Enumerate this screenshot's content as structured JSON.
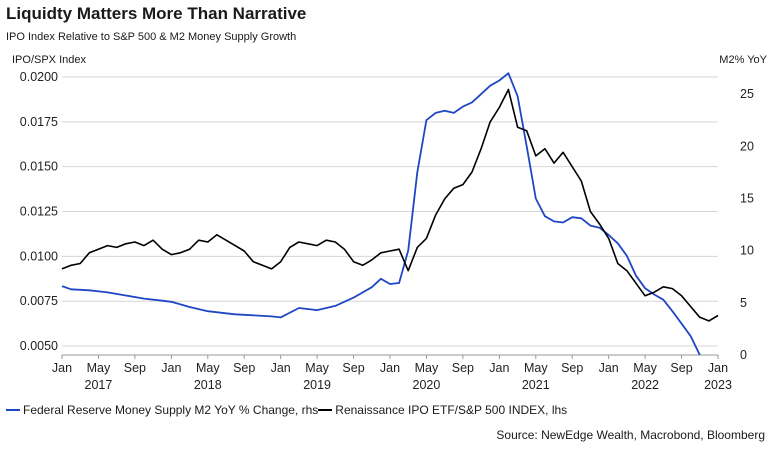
{
  "chart_data": {
    "type": "line",
    "title": "Liquidty Matters More Than Narrative",
    "subtitle": "IPO Index Relative to S&P 500 & M2 Money Supply Growth",
    "ylabel_left": "IPO/SPX Index",
    "ylabel_right": "M2% YoY",
    "source": "Source: NewEdge Wealth, Macrobond, Bloomberg",
    "legend_position": "bottom",
    "grid": true,
    "y_left": {
      "min": 0.0045,
      "max": 0.0205,
      "ticks": [
        0.005,
        0.0075,
        0.01,
        0.0125,
        0.015,
        0.0175,
        0.02
      ],
      "tick_labels": [
        "0.0050",
        "0.0075",
        "0.0100",
        "0.0125",
        "0.0150",
        "0.0175",
        "0.0200"
      ]
    },
    "y_right": {
      "min": 0,
      "max": 27.5,
      "ticks": [
        0,
        5,
        10,
        15,
        20,
        25
      ],
      "tick_labels": [
        "0",
        "5",
        "10",
        "15",
        "20",
        "25"
      ]
    },
    "x_axis": {
      "start": "2017-01",
      "end": "2023-01",
      "month_ticks": [
        "Jan",
        "May",
        "Sep",
        "Jan",
        "May",
        "Sep",
        "Jan",
        "May",
        "Sep",
        "Jan",
        "May",
        "Sep",
        "Jan",
        "May",
        "Sep",
        "Jan",
        "May",
        "Sep",
        "Jan"
      ],
      "tick_dates": [
        "2017-01",
        "2017-05",
        "2017-09",
        "2018-01",
        "2018-05",
        "2018-09",
        "2019-01",
        "2019-05",
        "2019-09",
        "2020-01",
        "2020-05",
        "2020-09",
        "2021-01",
        "2021-05",
        "2021-09",
        "2022-01",
        "2022-05",
        "2022-09",
        "2023-01"
      ],
      "year_labels": [
        {
          "label": "2017",
          "date": "2017-05"
        },
        {
          "label": "2018",
          "date": "2018-05"
        },
        {
          "label": "2019",
          "date": "2019-05"
        },
        {
          "label": "2020",
          "date": "2020-05"
        },
        {
          "label": "2021",
          "date": "2021-05"
        },
        {
          "label": "2022",
          "date": "2022-05"
        },
        {
          "label": "2023",
          "date": "2023-01"
        }
      ]
    },
    "series": [
      {
        "name": "Federal Reserve Money Supply M2 YoY % Change, rhs",
        "axis": "right",
        "color": "#1f47c4",
        "points": [
          [
            "2017-01",
            6.6
          ],
          [
            "2017-02",
            6.3
          ],
          [
            "2017-04",
            6.2
          ],
          [
            "2017-06",
            6.0
          ],
          [
            "2017-08",
            5.7
          ],
          [
            "2017-10",
            5.4
          ],
          [
            "2017-12",
            5.2
          ],
          [
            "2018-01",
            5.1
          ],
          [
            "2018-03",
            4.6
          ],
          [
            "2018-05",
            4.2
          ],
          [
            "2018-07",
            4.0
          ],
          [
            "2018-08",
            3.9
          ],
          [
            "2018-10",
            3.8
          ],
          [
            "2018-12",
            3.7
          ],
          [
            "2019-01",
            3.6
          ],
          [
            "2019-03",
            4.5
          ],
          [
            "2019-05",
            4.3
          ],
          [
            "2019-07",
            4.7
          ],
          [
            "2019-09",
            5.5
          ],
          [
            "2019-11",
            6.5
          ],
          [
            "2019-12",
            7.3
          ],
          [
            "2020-01",
            6.8
          ],
          [
            "2020-02",
            6.9
          ],
          [
            "2020-03",
            10.0
          ],
          [
            "2020-04",
            17.5
          ],
          [
            "2020-05",
            22.5
          ],
          [
            "2020-06",
            23.2
          ],
          [
            "2020-07",
            23.4
          ],
          [
            "2020-08",
            23.2
          ],
          [
            "2020-09",
            23.8
          ],
          [
            "2020-10",
            24.2
          ],
          [
            "2020-11",
            25.0
          ],
          [
            "2020-12",
            25.8
          ],
          [
            "2021-01",
            26.3
          ],
          [
            "2021-02",
            27.0
          ],
          [
            "2021-03",
            24.8
          ],
          [
            "2021-04",
            20.0
          ],
          [
            "2021-05",
            15.0
          ],
          [
            "2021-06",
            13.3
          ],
          [
            "2021-07",
            12.8
          ],
          [
            "2021-08",
            12.7
          ],
          [
            "2021-09",
            13.2
          ],
          [
            "2021-10",
            13.1
          ],
          [
            "2021-11",
            12.4
          ],
          [
            "2021-12",
            12.2
          ],
          [
            "2022-01",
            11.5
          ],
          [
            "2022-02",
            10.7
          ],
          [
            "2022-03",
            9.5
          ],
          [
            "2022-04",
            7.6
          ],
          [
            "2022-05",
            6.4
          ],
          [
            "2022-06",
            5.8
          ],
          [
            "2022-07",
            5.3
          ],
          [
            "2022-08",
            4.2
          ],
          [
            "2022-09",
            3.0
          ],
          [
            "2022-10",
            1.8
          ],
          [
            "2022-11",
            0.0
          ]
        ]
      },
      {
        "name": "Renaissance IPO ETF/S&P 500 INDEX, lhs",
        "axis": "left",
        "color": "#000000",
        "points": [
          [
            "2017-01",
            0.0093
          ],
          [
            "2017-02",
            0.0095
          ],
          [
            "2017-03",
            0.0096
          ],
          [
            "2017-04",
            0.0102
          ],
          [
            "2017-05",
            0.0104
          ],
          [
            "2017-06",
            0.0106
          ],
          [
            "2017-07",
            0.0105
          ],
          [
            "2017-08",
            0.0107
          ],
          [
            "2017-09",
            0.0108
          ],
          [
            "2017-10",
            0.0106
          ],
          [
            "2017-11",
            0.0109
          ],
          [
            "2017-12",
            0.0104
          ],
          [
            "2018-01",
            0.0101
          ],
          [
            "2018-02",
            0.0102
          ],
          [
            "2018-03",
            0.0104
          ],
          [
            "2018-04",
            0.0109
          ],
          [
            "2018-05",
            0.0108
          ],
          [
            "2018-06",
            0.0112
          ],
          [
            "2018-07",
            0.0109
          ],
          [
            "2018-08",
            0.0106
          ],
          [
            "2018-09",
            0.0103
          ],
          [
            "2018-10",
            0.0097
          ],
          [
            "2018-11",
            0.0095
          ],
          [
            "2018-12",
            0.0093
          ],
          [
            "2019-01",
            0.0097
          ],
          [
            "2019-02",
            0.0105
          ],
          [
            "2019-03",
            0.0108
          ],
          [
            "2019-04",
            0.0107
          ],
          [
            "2019-05",
            0.0106
          ],
          [
            "2019-06",
            0.0109
          ],
          [
            "2019-07",
            0.0108
          ],
          [
            "2019-08",
            0.0104
          ],
          [
            "2019-09",
            0.0097
          ],
          [
            "2019-10",
            0.0095
          ],
          [
            "2019-11",
            0.0098
          ],
          [
            "2019-12",
            0.0102
          ],
          [
            "2020-01",
            0.0103
          ],
          [
            "2020-02",
            0.0104
          ],
          [
            "2020-03",
            0.0092
          ],
          [
            "2020-04",
            0.0105
          ],
          [
            "2020-05",
            0.011
          ],
          [
            "2020-06",
            0.0123
          ],
          [
            "2020-07",
            0.0132
          ],
          [
            "2020-08",
            0.0138
          ],
          [
            "2020-09",
            0.014
          ],
          [
            "2020-10",
            0.0147
          ],
          [
            "2020-11",
            0.016
          ],
          [
            "2020-12",
            0.0175
          ],
          [
            "2021-01",
            0.0183
          ],
          [
            "2021-02",
            0.0193
          ],
          [
            "2021-03",
            0.0172
          ],
          [
            "2021-04",
            0.017
          ],
          [
            "2021-05",
            0.0156
          ],
          [
            "2021-06",
            0.016
          ],
          [
            "2021-07",
            0.0152
          ],
          [
            "2021-08",
            0.0158
          ],
          [
            "2021-09",
            0.015
          ],
          [
            "2021-10",
            0.0142
          ],
          [
            "2021-11",
            0.0125
          ],
          [
            "2021-12",
            0.0118
          ],
          [
            "2022-01",
            0.011
          ],
          [
            "2022-02",
            0.0096
          ],
          [
            "2022-03",
            0.0092
          ],
          [
            "2022-04",
            0.0085
          ],
          [
            "2022-05",
            0.0078
          ],
          [
            "2022-06",
            0.008
          ],
          [
            "2022-07",
            0.0083
          ],
          [
            "2022-08",
            0.0082
          ],
          [
            "2022-09",
            0.0078
          ],
          [
            "2022-10",
            0.0072
          ],
          [
            "2022-11",
            0.0066
          ],
          [
            "2022-12",
            0.0064
          ],
          [
            "2023-01",
            0.0067
          ]
        ]
      }
    ]
  }
}
